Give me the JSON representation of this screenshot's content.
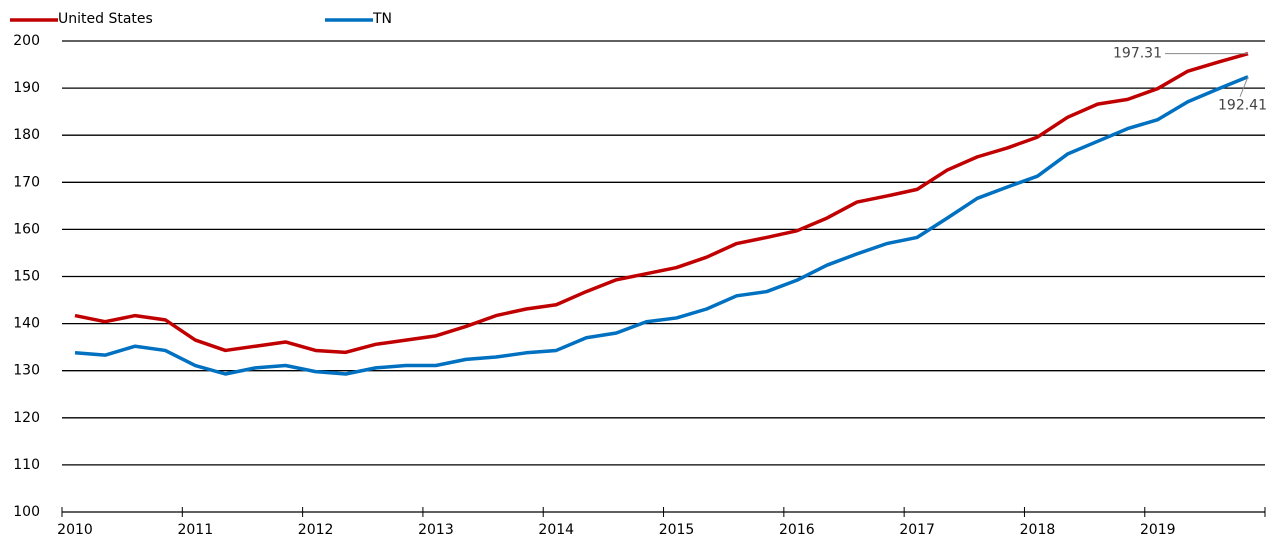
{
  "chart_data": {
    "type": "line",
    "categories": [
      "2010",
      null,
      null,
      null,
      "2011",
      null,
      null,
      null,
      "2012",
      null,
      null,
      null,
      "2013",
      null,
      null,
      null,
      "2014",
      null,
      null,
      null,
      "2015",
      null,
      null,
      null,
      "2016",
      null,
      null,
      null,
      "2017",
      null,
      null,
      null,
      "2018",
      null,
      null,
      null,
      "2019",
      null,
      null,
      null
    ],
    "series": [
      {
        "name": "United States",
        "color": "#c00000",
        "values": [
          141.7,
          140.4,
          141.7,
          140.8,
          136.5,
          134.3,
          135.2,
          136.1,
          134.3,
          133.9,
          135.6,
          136.5,
          137.4,
          139.4,
          141.7,
          143.1,
          144.0,
          146.8,
          149.3,
          150.6,
          151.9,
          154.1,
          157.0,
          158.3,
          159.7,
          162.4,
          165.8,
          167.1,
          168.5,
          172.6,
          175.4,
          177.3,
          179.6,
          183.8,
          186.6,
          187.6,
          189.9,
          193.6,
          195.5,
          197.31
        ]
      },
      {
        "name": "TN",
        "color": "#0070c0",
        "values": [
          133.8,
          133.3,
          135.2,
          134.3,
          131.1,
          129.3,
          130.6,
          131.1,
          129.8,
          129.3,
          130.6,
          131.1,
          131.1,
          132.4,
          132.9,
          133.8,
          134.3,
          137.0,
          138.0,
          140.4,
          141.2,
          143.1,
          145.9,
          146.8,
          149.2,
          152.4,
          154.8,
          157.0,
          158.3,
          162.4,
          166.6,
          169.0,
          171.3,
          176.0,
          178.7,
          181.4,
          183.3,
          187.1,
          189.8,
          192.41
        ]
      }
    ],
    "ylim": [
      100,
      200
    ],
    "yticks": [
      100,
      110,
      120,
      130,
      140,
      150,
      160,
      170,
      180,
      190,
      200
    ],
    "grid": true,
    "legend": "top-left"
  }
}
